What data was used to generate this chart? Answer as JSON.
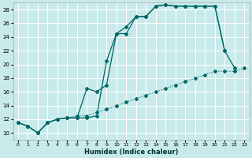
{
  "title": "",
  "xlabel": "Humidex (Indice chaleur)",
  "ylabel": "",
  "background_color": "#c8eaea",
  "grid_color": "#d4e8e8",
  "line_color": "#006666",
  "xlim": [
    -0.5,
    23.5
  ],
  "ylim": [
    9,
    29
  ],
  "xticks": [
    0,
    1,
    2,
    3,
    4,
    5,
    6,
    7,
    8,
    9,
    10,
    11,
    12,
    13,
    14,
    15,
    16,
    17,
    18,
    19,
    20,
    21,
    22,
    23
  ],
  "yticks": [
    10,
    12,
    14,
    16,
    18,
    20,
    22,
    24,
    26,
    28
  ],
  "curve_dotted_x": [
    0,
    1,
    2,
    3,
    4,
    5,
    6,
    7,
    8,
    9,
    10,
    11,
    12,
    13,
    14,
    15,
    16,
    17,
    18,
    19,
    20,
    21,
    22,
    23
  ],
  "curve_dotted_y": [
    11.5,
    11.0,
    10.0,
    11.5,
    12.0,
    12.2,
    12.5,
    12.5,
    13.0,
    13.5,
    14.0,
    14.5,
    15.0,
    15.5,
    16.0,
    16.5,
    17.0,
    17.5,
    18.0,
    18.5,
    19.0,
    19.0,
    19.0,
    19.5
  ],
  "curve1_x": [
    0,
    1,
    2,
    3,
    4,
    5,
    6,
    7,
    8,
    9,
    10,
    11,
    12,
    13,
    14,
    15,
    16,
    17,
    18,
    19,
    20,
    21,
    22
  ],
  "curve1_y": [
    11.5,
    11.0,
    10.0,
    11.5,
    12.0,
    12.2,
    12.2,
    12.2,
    12.5,
    20.5,
    24.5,
    24.5,
    27.0,
    27.0,
    28.5,
    28.7,
    28.5,
    28.5,
    28.5,
    28.5,
    28.5,
    22.0,
    19.5
  ],
  "curve2_x": [
    0,
    1,
    2,
    3,
    4,
    5,
    6,
    7,
    8,
    9,
    10,
    11,
    12,
    13,
    14,
    15,
    16,
    17,
    18,
    19,
    20,
    21
  ],
  "curve2_y": [
    11.5,
    11.0,
    10.0,
    11.5,
    12.0,
    12.2,
    12.2,
    16.5,
    16.0,
    17.0,
    24.5,
    25.5,
    27.0,
    27.0,
    28.5,
    28.7,
    28.5,
    28.5,
    28.5,
    28.5,
    28.5,
    22.0
  ]
}
